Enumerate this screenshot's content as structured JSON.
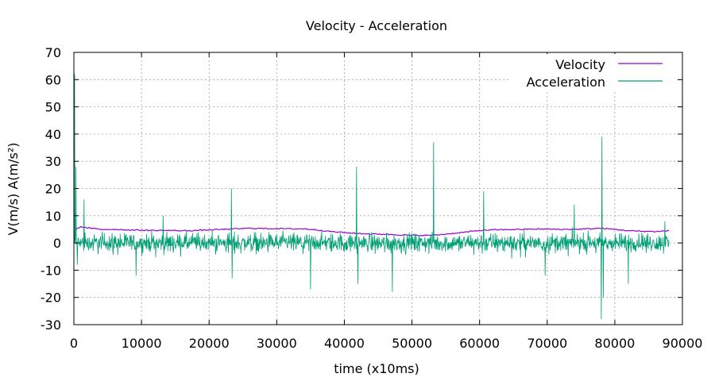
{
  "chart_data": {
    "type": "line",
    "title": "Velocity - Acceleration",
    "xlabel": "time (x10ms)",
    "ylabel": "V(m/s) A(m/s²)",
    "xlim": [
      0,
      90000
    ],
    "ylim": [
      -30,
      70
    ],
    "x_ticks": [
      0,
      10000,
      20000,
      30000,
      40000,
      50000,
      60000,
      70000,
      80000,
      90000
    ],
    "y_ticks": [
      -30,
      -20,
      -10,
      0,
      10,
      20,
      30,
      40,
      50,
      60,
      70
    ],
    "x_tick_labels": [
      "0",
      "10000",
      "20000",
      "30000",
      "40000",
      "50000",
      "60000",
      "70000",
      "80000",
      "90000"
    ],
    "y_tick_labels": [
      "-30",
      "-20",
      "-10",
      "0",
      "10",
      "20",
      "30",
      "40",
      "50",
      "60",
      "70"
    ],
    "grid": true,
    "legend_position": "top-right",
    "series": [
      {
        "name": "Velocity",
        "color": "#9400d3",
        "x": [
          0,
          300,
          1000,
          2000,
          4000,
          6000,
          8000,
          10000,
          12000,
          14000,
          16000,
          18000,
          20000,
          22000,
          24000,
          26000,
          28000,
          30000,
          32000,
          34000,
          36000,
          38000,
          40000,
          42000,
          44000,
          46000,
          48000,
          50000,
          52000,
          54000,
          56000,
          58000,
          60000,
          62000,
          64000,
          66000,
          68000,
          70000,
          72000,
          74000,
          76000,
          78000,
          80000,
          82000,
          84000,
          86000,
          88000
        ],
        "values": [
          0,
          5,
          6,
          5.5,
          5,
          5,
          4.8,
          4.7,
          4.6,
          4.6,
          4.5,
          4.6,
          4.8,
          5,
          5.2,
          5.4,
          5.3,
          5.3,
          5.2,
          5.2,
          4.8,
          4.2,
          3.8,
          3.5,
          3.3,
          3.2,
          3,
          2.8,
          2.8,
          3,
          3.5,
          4,
          4.6,
          4.8,
          4.9,
          5,
          5.1,
          5.1,
          5,
          5,
          5.2,
          5.4,
          5,
          4.5,
          4.3,
          4.2,
          4.5
        ]
      },
      {
        "name": "Acceleration",
        "color": "#009e73",
        "noise_amplitude": 5,
        "spikes": [
          {
            "x": 100,
            "value": 62
          },
          {
            "x": 300,
            "value": 28
          },
          {
            "x": 500,
            "value": -8
          },
          {
            "x": 1500,
            "value": 16
          },
          {
            "x": 9200,
            "value": -12
          },
          {
            "x": 13200,
            "value": 10
          },
          {
            "x": 23300,
            "value": 20
          },
          {
            "x": 23400,
            "value": -13
          },
          {
            "x": 35000,
            "value": -17
          },
          {
            "x": 41800,
            "value": 28
          },
          {
            "x": 42000,
            "value": -15
          },
          {
            "x": 47100,
            "value": -18
          },
          {
            "x": 53200,
            "value": 37
          },
          {
            "x": 60600,
            "value": 19
          },
          {
            "x": 69700,
            "value": -12
          },
          {
            "x": 74000,
            "value": 14
          },
          {
            "x": 78100,
            "value": 39
          },
          {
            "x": 78000,
            "value": -28
          },
          {
            "x": 78300,
            "value": -20
          },
          {
            "x": 82000,
            "value": -15
          },
          {
            "x": 87400,
            "value": 8
          }
        ]
      }
    ]
  }
}
